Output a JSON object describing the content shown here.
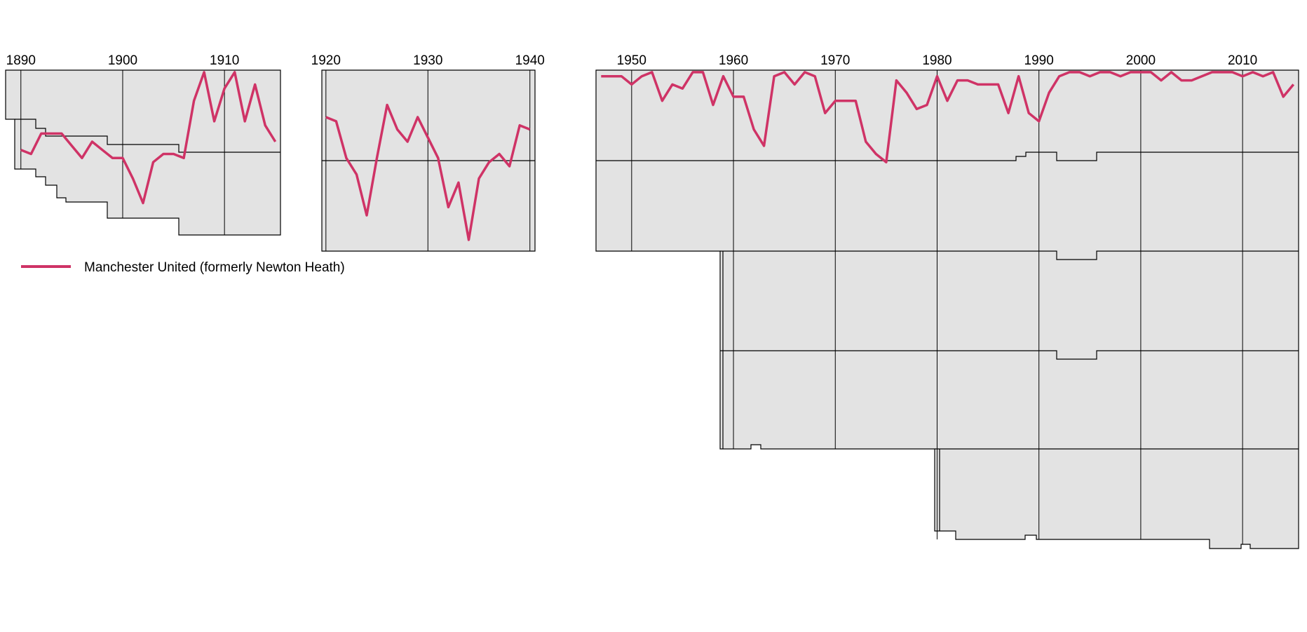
{
  "chart_data": {
    "type": "line",
    "title": "",
    "xlabel": "",
    "ylabel": "",
    "y_meaning": "overall league position (1 = top)",
    "series_color": "#cf3366",
    "background_color": "#e3e3e3",
    "legend": {
      "label": "Manchester United (formerly Newton Heath)",
      "placement": "below-left"
    },
    "panels": [
      {
        "id": "p1",
        "xlim": [
          1888.5,
          1915.5
        ],
        "ticks": [
          "1890",
          "1900",
          "1910"
        ],
        "points": [
          [
            1890,
            20
          ],
          [
            1891,
            21
          ],
          [
            1892,
            16
          ],
          [
            1893,
            16
          ],
          [
            1894,
            16
          ],
          [
            1895,
            19
          ],
          [
            1896,
            22
          ],
          [
            1897,
            18
          ],
          [
            1898,
            20
          ],
          [
            1899,
            22
          ],
          [
            1900,
            22
          ],
          [
            1901,
            27
          ],
          [
            1902,
            33
          ],
          [
            1903,
            23
          ],
          [
            1904,
            21
          ],
          [
            1905,
            21
          ],
          [
            1906,
            22
          ],
          [
            1907,
            8
          ],
          [
            1908,
            1
          ],
          [
            1909,
            13
          ],
          [
            1910,
            5
          ],
          [
            1911,
            1
          ],
          [
            1912,
            13
          ],
          [
            1913,
            4
          ],
          [
            1914,
            14
          ],
          [
            1915,
            18
          ]
        ]
      },
      {
        "id": "p2",
        "xlim": [
          1919.6,
          1940.5
        ],
        "ticks": [
          "1920",
          "1930",
          "1940"
        ],
        "points": [
          [
            1920,
            12
          ],
          [
            1921,
            13
          ],
          [
            1922,
            22
          ],
          [
            1923,
            26
          ],
          [
            1924,
            36
          ],
          [
            1925,
            22
          ],
          [
            1926,
            9
          ],
          [
            1927,
            15
          ],
          [
            1928,
            18
          ],
          [
            1929,
            12
          ],
          [
            1930,
            17
          ],
          [
            1931,
            22
          ],
          [
            1932,
            34
          ],
          [
            1933,
            28
          ],
          [
            1934,
            42
          ],
          [
            1935,
            27
          ],
          [
            1936,
            23
          ],
          [
            1937,
            21
          ],
          [
            1938,
            24
          ],
          [
            1939,
            14
          ],
          [
            1940,
            15
          ]
        ]
      },
      {
        "id": "p3",
        "xlim": [
          1946.5,
          2015.5
        ],
        "ticks": [
          "1950",
          "1960",
          "1970",
          "1980",
          "1990",
          "2000",
          "2010"
        ],
        "points": [
          [
            1947,
            2
          ],
          [
            1948,
            2
          ],
          [
            1949,
            2
          ],
          [
            1950,
            4
          ],
          [
            1951,
            2
          ],
          [
            1952,
            1
          ],
          [
            1953,
            8
          ],
          [
            1954,
            4
          ],
          [
            1955,
            5
          ],
          [
            1956,
            1
          ],
          [
            1957,
            1
          ],
          [
            1958,
            9
          ],
          [
            1959,
            2
          ],
          [
            1960,
            7
          ],
          [
            1961,
            7
          ],
          [
            1962,
            15
          ],
          [
            1963,
            19
          ],
          [
            1964,
            2
          ],
          [
            1965,
            1
          ],
          [
            1966,
            4
          ],
          [
            1967,
            1
          ],
          [
            1968,
            2
          ],
          [
            1969,
            11
          ],
          [
            1970,
            8
          ],
          [
            1971,
            8
          ],
          [
            1972,
            8
          ],
          [
            1973,
            18
          ],
          [
            1974,
            21
          ],
          [
            1975,
            23
          ],
          [
            1976,
            3
          ],
          [
            1977,
            6
          ],
          [
            1978,
            10
          ],
          [
            1979,
            9
          ],
          [
            1980,
            2
          ],
          [
            1981,
            8
          ],
          [
            1982,
            3
          ],
          [
            1983,
            3
          ],
          [
            1984,
            4
          ],
          [
            1985,
            4
          ],
          [
            1986,
            4
          ],
          [
            1987,
            11
          ],
          [
            1988,
            2
          ],
          [
            1989,
            11
          ],
          [
            1990,
            13
          ],
          [
            1991,
            6
          ],
          [
            1992,
            2
          ],
          [
            1993,
            1
          ],
          [
            1994,
            1
          ],
          [
            1995,
            2
          ],
          [
            1996,
            1
          ],
          [
            1997,
            1
          ],
          [
            1998,
            2
          ],
          [
            1999,
            1
          ],
          [
            2000,
            1
          ],
          [
            2001,
            1
          ],
          [
            2002,
            3
          ],
          [
            2003,
            1
          ],
          [
            2004,
            3
          ],
          [
            2005,
            3
          ],
          [
            2006,
            2
          ],
          [
            2007,
            1
          ],
          [
            2008,
            1
          ],
          [
            2009,
            1
          ],
          [
            2010,
            2
          ],
          [
            2011,
            1
          ],
          [
            2012,
            2
          ],
          [
            2013,
            1
          ],
          [
            2014,
            7
          ],
          [
            2015,
            4
          ]
        ]
      }
    ]
  }
}
